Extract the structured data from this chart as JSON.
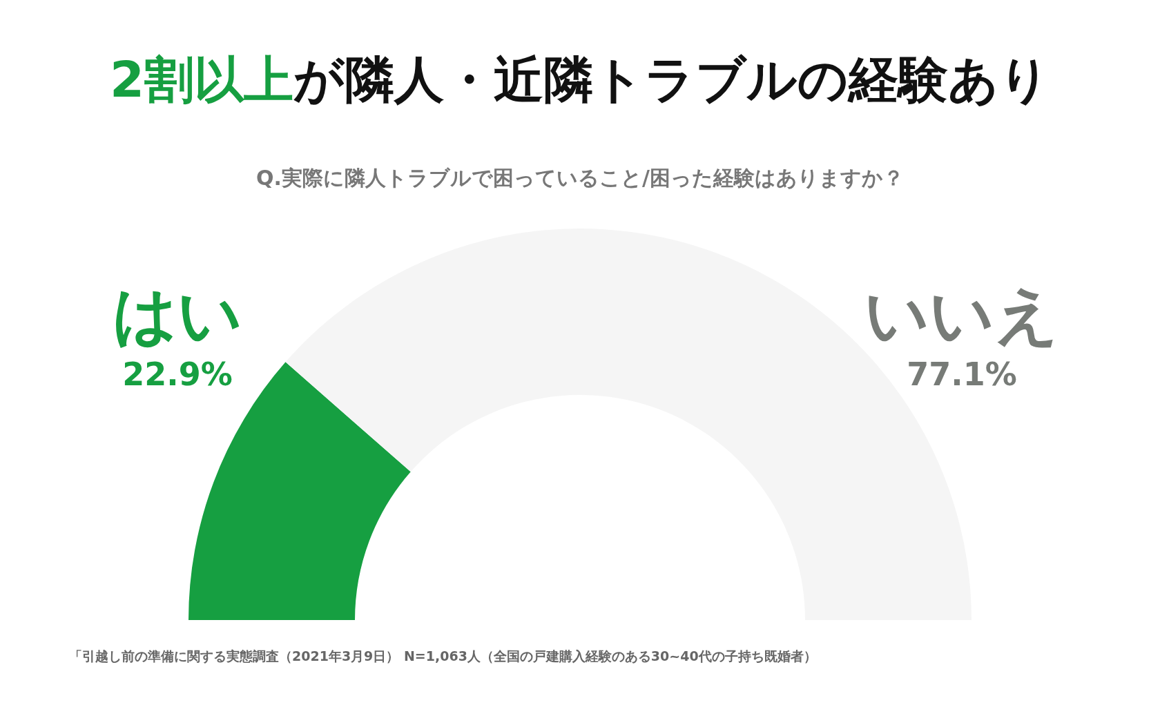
{
  "chart_data": {
    "type": "donut",
    "title": "**2割以上**が隣人・近隣トラブルの経験あり",
    "subtitle": "Q.実際に隣人トラブルで困っていること/困った経験はありますか？",
    "categories": [
      "はい",
      "いいえ"
    ],
    "values": [
      22.9,
      77.1
    ],
    "colors": [
      "#169f41",
      "#f5f5f5"
    ],
    "value_labels": [
      "22.9%",
      "77.1%"
    ],
    "annotations": [
      "「引越し前の準備に関する実態調査（2021年3月9日） N=1,063人（全国の戸建購入経験のある30~40代の子持ち既婚者）"
    ]
  }
}
